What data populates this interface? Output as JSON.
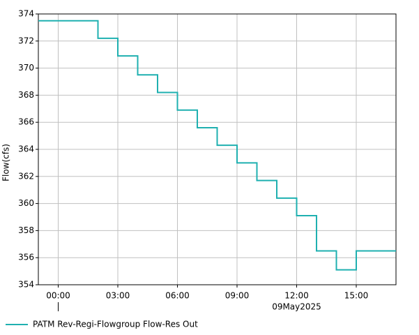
{
  "chart_data": {
    "type": "line",
    "step": "post",
    "ylabel": "Flow(cfs)",
    "date_label": "09May2025",
    "x": [
      -1,
      2,
      3,
      4,
      5,
      6,
      7,
      8,
      9,
      10,
      11,
      12,
      13,
      14,
      15
    ],
    "series": [
      {
        "name": "PATM Rev-Regi-Flowgroup Flow-Res Out",
        "color": "#1fb0b0",
        "values": [
          373.5,
          372.2,
          370.9,
          369.5,
          368.2,
          366.9,
          365.6,
          364.3,
          363.0,
          361.7,
          360.4,
          359.1,
          356.5,
          355.1,
          356.5
        ]
      }
    ],
    "xlim": [
      -1,
      17
    ],
    "xticks": [
      {
        "value": 0,
        "label": "00:00"
      },
      {
        "value": 3,
        "label": "03:00"
      },
      {
        "value": 6,
        "label": "06:00"
      },
      {
        "value": 9,
        "label": "09:00"
      },
      {
        "value": 12,
        "label": "12:00"
      },
      {
        "value": 15,
        "label": "15:00"
      }
    ],
    "ylim": [
      354,
      374
    ],
    "yticks": [
      354,
      356,
      358,
      360,
      362,
      364,
      366,
      368,
      370,
      372,
      374
    ],
    "grid": true,
    "legend": "bottom"
  }
}
